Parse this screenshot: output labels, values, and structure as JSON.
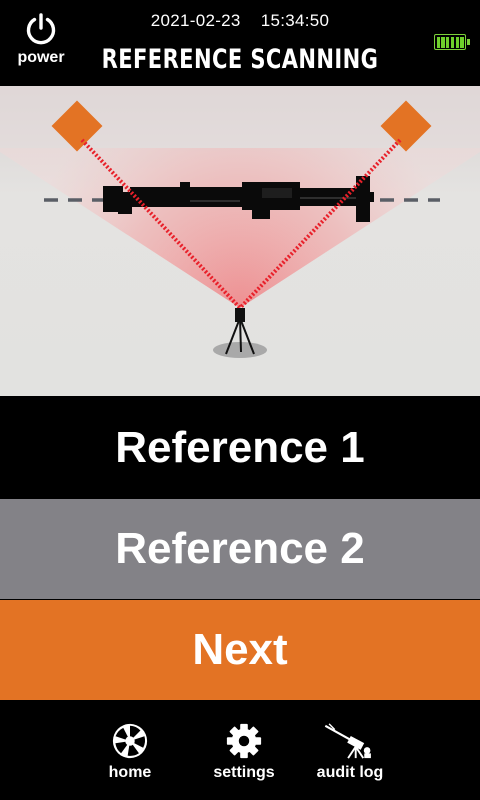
{
  "header": {
    "date": "2021-02-23",
    "time": "15:34:50",
    "title": "REFERENCE SCANNING",
    "power_label": "power",
    "battery_icon": "battery-full-icon",
    "battery_color": "#6fd12b"
  },
  "scene": {
    "target_color": "#e37324",
    "laser_color": "#e8202a"
  },
  "buttons": {
    "reference1_label": "Reference 1",
    "reference2_label": "Reference 2",
    "next_label": "Next",
    "reference1_color": "#000000",
    "reference2_color": "#838287",
    "next_color": "#e37324"
  },
  "nav": {
    "home_label": "home",
    "settings_label": "settings",
    "audit_label": "audit log",
    "home_icon": "aperture-icon",
    "settings_icon": "gear-icon",
    "audit_icon": "turret-icon"
  }
}
